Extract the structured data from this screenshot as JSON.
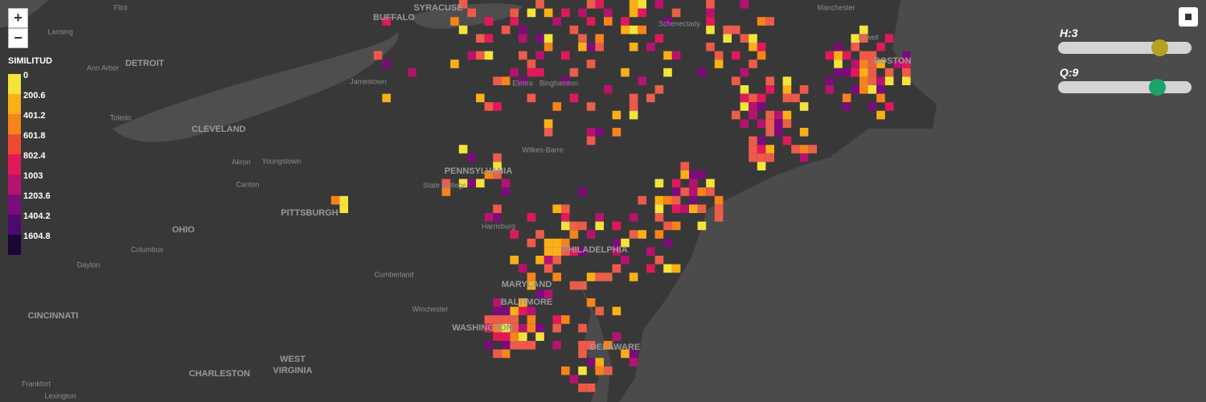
{
  "zoom": {
    "in": "+",
    "out": "−"
  },
  "legend": {
    "title": "SIMILITUD",
    "labels": [
      "0",
      "200.6",
      "401.2",
      "601.8",
      "802.4",
      "1003",
      "1203.6",
      "1404.2",
      "1604.8"
    ],
    "colors": [
      "#f3e43b",
      "#f9b017",
      "#f7831b",
      "#ee4a32",
      "#e0195a",
      "#b5136f",
      "#7b0c7a",
      "#4c0a6e",
      "#1a0533"
    ]
  },
  "sliders": [
    {
      "label": "H:3",
      "color": "#b5a020"
    },
    {
      "label": "Q:9",
      "color": "#1aa36a"
    }
  ],
  "places": [
    "Flint",
    "Lansing",
    "DETROIT",
    "Ann Arbor",
    "Toledo",
    "CLEVELAND",
    "Akron",
    "Youngstown",
    "Canton",
    "PITTSBURGH",
    "OHIO",
    "Columbus",
    "Dayton",
    "CINCINNATI",
    "Frankfort",
    "Lexington",
    "CHARLESTON",
    "WEST",
    "VIRGINIA",
    "Winchester",
    "Cumberland",
    "Harrisburg",
    "PHILADELPHIA",
    "MARYLAND",
    "BALTIMORE",
    "WASHINGTON",
    "DELAWARE",
    "PENNSYLVANIA",
    "State College",
    "Wilkes-Barre",
    "Binghamton",
    "Elmira",
    "Jamestown",
    "BUFFALO",
    "SYRACUSE",
    "Schenectady",
    "Lowell",
    "Manchester",
    "BOSTON"
  ]
}
